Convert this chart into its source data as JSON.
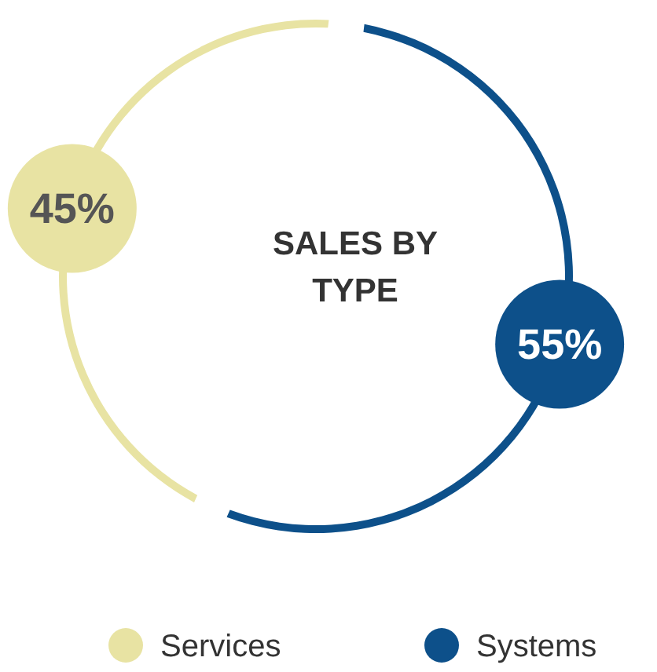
{
  "chart_data": {
    "type": "donut",
    "title": "SALES BY TYPE",
    "categories": [
      "Services",
      "Systems"
    ],
    "values": [
      45,
      55
    ],
    "colors": [
      "#e8e3a3",
      "#0d508a"
    ],
    "value_labels": [
      "45%",
      "55%"
    ],
    "legend": "bottom"
  }
}
